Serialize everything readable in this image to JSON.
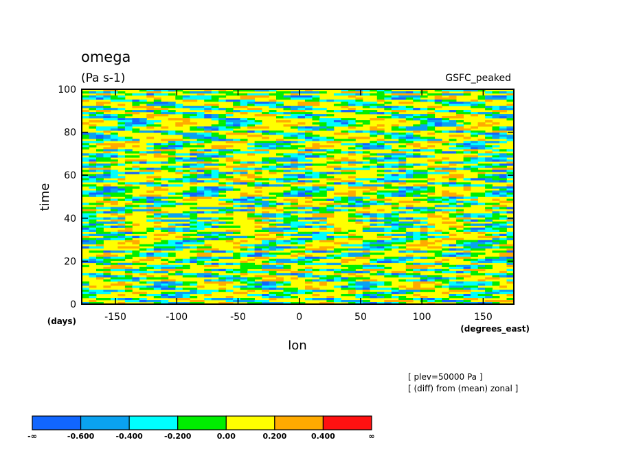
{
  "chart_data": {
    "type": "heatmap",
    "title": "omega",
    "units": "(Pa s-1)",
    "dataset": "GSFC_peaked",
    "xlabel": "lon",
    "xunits": "(degrees_east)",
    "ylabel": "time",
    "yunits": "(days)",
    "xlim": [
      -177.5,
      175.0
    ],
    "ylim": [
      0,
      100
    ],
    "xticks": [
      -150,
      -100,
      -50,
      0,
      50,
      100,
      150
    ],
    "yticks": [
      0,
      20,
      40,
      60,
      80,
      100
    ],
    "notes": [
      "[ plev=50000 Pa ]",
      "[ (diff) from (mean) zonal ]"
    ],
    "colorbar": {
      "bins": [
        {
          "min": "-∞",
          "max": -0.6,
          "color": "#1166ff"
        },
        {
          "min": -0.6,
          "max": -0.4,
          "color": "#0aa2f0"
        },
        {
          "min": -0.4,
          "max": -0.2,
          "color": "#00ffff"
        },
        {
          "min": -0.2,
          "max": 0.0,
          "color": "#00ee00"
        },
        {
          "min": 0.0,
          "max": 0.2,
          "color": "#ffff00"
        },
        {
          "min": 0.2,
          "max": 0.4,
          "color": "#ffaa00"
        },
        {
          "min": 0.4,
          "max": "∞",
          "color": "#ff1111"
        }
      ],
      "labels": [
        "-∞",
        "-0.600",
        "-0.400",
        "-0.200",
        "0.00",
        "0.200",
        "0.400",
        "∞"
      ]
    }
  }
}
